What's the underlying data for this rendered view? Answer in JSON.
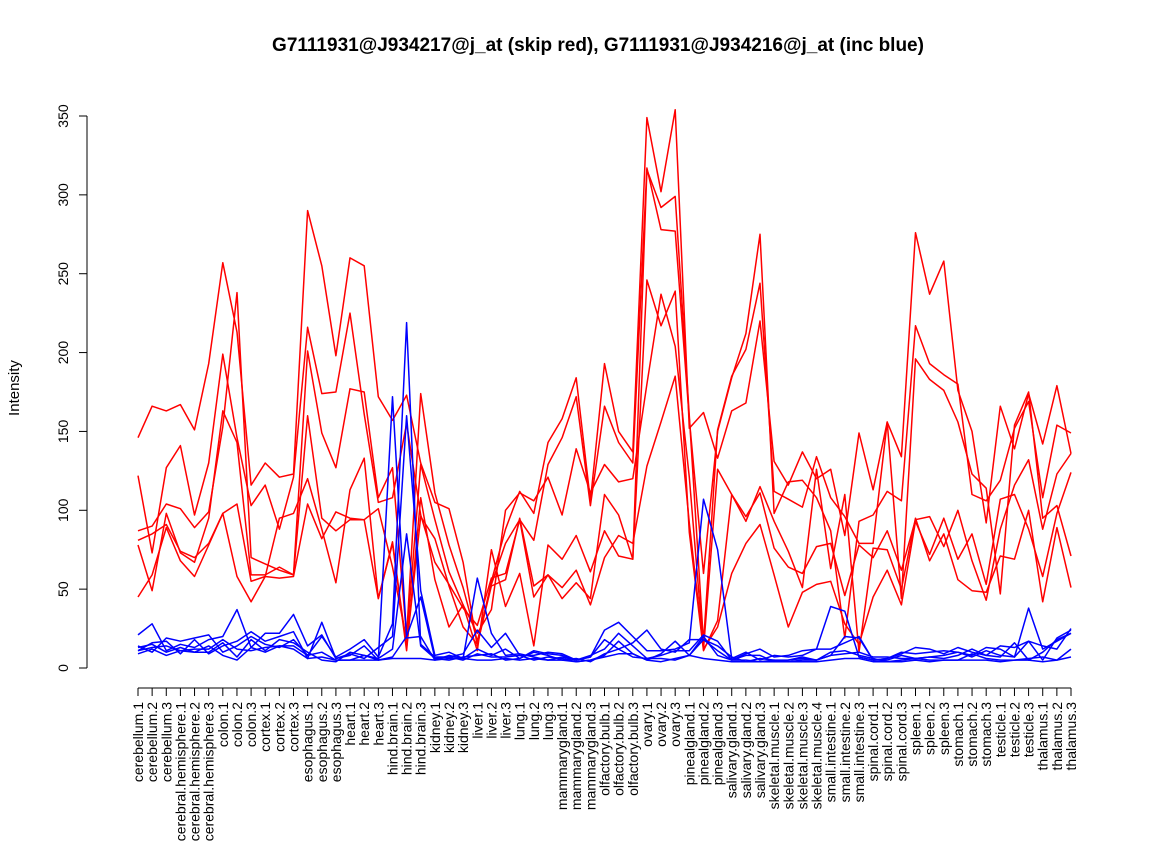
{
  "chart_data": {
    "type": "line",
    "title": "G7111931@J934217@j_at (skip red), G7111931@J934216@j_at (inc blue)",
    "xlabel": "",
    "ylabel": "Intensity",
    "ylim": [
      0,
      350
    ],
    "yticks": [
      0,
      50,
      100,
      150,
      200,
      250,
      300,
      350
    ],
    "grid": false,
    "legend": "none",
    "colors": {
      "red": "#ff0000",
      "blue": "#0000ff"
    },
    "categories": [
      "cerebellum.1",
      "cerebellum.2",
      "cerebellum.3",
      "cerebral.hemisphere.1",
      "cerebral.hemisphere.2",
      "cerebral.hemisphere.3",
      "colon.1",
      "colon.2",
      "colon.3",
      "cortex.1",
      "cortex.2",
      "cortex.3",
      "esophagus.1",
      "esophagus.2",
      "esophagus.3",
      "heart.1",
      "heart.2",
      "heart.3",
      "hind.brain.1",
      "hind.brain.2",
      "hind.brain.3",
      "kidney.1",
      "kidney.2",
      "kidney.3",
      "liver.1",
      "liver.2",
      "liver.3",
      "lung.1",
      "lung.2",
      "lung.3",
      "mammarygland.1",
      "mammarygland.2",
      "mammarygland.3",
      "olfactory.bulb.1",
      "olfactory.bulb.2",
      "olfactory.bulb.3",
      "ovary.1",
      "ovary.2",
      "ovary.3",
      "pinealgland.1",
      "pinealgland.2",
      "pinealgland.3",
      "salivary.gland.1",
      "salivary.gland.2",
      "salivary.gland.3",
      "skeletal.muscle.1",
      "skeletal.muscle.2",
      "skeletal.muscle.3",
      "skeletal.muscle.4",
      "small.intestine.1",
      "small.intestine.2",
      "small.intestine.3",
      "spinal.cord.1",
      "spinal.cord.2",
      "spinal.cord.3",
      "spleen.1",
      "spleen.2",
      "spleen.3",
      "stomach.1",
      "stomach.2",
      "stomach.3",
      "testicle.1",
      "testicle.2",
      "testicle.3",
      "thalamus.1",
      "thalamus.2",
      "thalamus.3"
    ],
    "series": [
      {
        "color": "red",
        "values": [
          146,
          166,
          163,
          167,
          151,
          193,
          257,
          213,
          116,
          130,
          121,
          123,
          290,
          255,
          198,
          260,
          255,
          172,
          157,
          173,
          130,
          105,
          101,
          67,
          14,
          55,
          88,
          112,
          98,
          143,
          158,
          184,
          106,
          193,
          150,
          137,
          349,
          302,
          354,
          152,
          162,
          133,
          163,
          168,
          220,
          131,
          116,
          137,
          120,
          126,
          84,
          149,
          113,
          156,
          134,
          276,
          237,
          258,
          176,
          150,
          92,
          166,
          139,
          174,
          142,
          179,
          136
        ]
      },
      {
        "color": "red",
        "values": [
          122,
          73,
          127,
          141,
          97,
          130,
          199,
          146,
          103,
          116,
          88,
          121,
          216,
          174,
          175,
          225,
          161,
          105,
          108,
          155,
          97,
          67,
          53,
          38,
          27,
          57,
          60,
          94,
          81,
          129,
          146,
          172,
          103,
          166,
          143,
          130,
          317,
          278,
          277,
          158,
          60,
          150,
          184,
          212,
          275,
          98,
          118,
          119,
          108,
          87,
          19,
          93,
          97,
          112,
          106,
          217,
          193,
          186,
          180,
          110,
          106,
          119,
          152,
          169,
          108,
          154,
          149
        ]
      },
      {
        "color": "red",
        "values": [
          78,
          49,
          98,
          73,
          67,
          95,
          163,
          143,
          59,
          59,
          64,
          59,
          201,
          149,
          127,
          177,
          175,
          108,
          127,
          20,
          174,
          111,
          78,
          51,
          17,
          53,
          79,
          94,
          45,
          59,
          44,
          54,
          44,
          110,
          97,
          69,
          316,
          292,
          299,
          160,
          16,
          151,
          185,
          202,
          244,
          112,
          107,
          102,
          134,
          108,
          96,
          79,
          79,
          156,
          44,
          196,
          183,
          176,
          156,
          123,
          114,
          47,
          154,
          175,
          95,
          103,
          71
        ]
      },
      {
        "color": "red",
        "values": [
          87,
          90,
          104,
          101,
          89,
          99,
          153,
          238,
          70,
          66,
          62,
          59,
          160,
          95,
          87,
          94,
          94,
          101,
          64,
          18,
          129,
          94,
          61,
          40,
          22,
          37,
          100,
          111,
          106,
          121,
          97,
          139,
          111,
          129,
          118,
          120,
          180,
          237,
          204,
          121,
          12,
          126,
          110,
          96,
          111,
          76,
          64,
          60,
          77,
          79,
          46,
          78,
          70,
          87,
          62,
          94,
          96,
          77,
          100,
          68,
          43,
          88,
          116,
          132,
          88,
          123,
          136
        ]
      },
      {
        "color": "red",
        "values": [
          45,
          59,
          89,
          68,
          58,
          78,
          98,
          58,
          42,
          58,
          95,
          98,
          120,
          88,
          54,
          113,
          133,
          44,
          79,
          11,
          108,
          56,
          26,
          40,
          11,
          75,
          39,
          60,
          14,
          78,
          69,
          84,
          61,
          87,
          71,
          69,
          246,
          217,
          239,
          86,
          11,
          30,
          110,
          93,
          115,
          93,
          74,
          51,
          126,
          63,
          110,
          10,
          76,
          75,
          50,
          95,
          68,
          85,
          56,
          49,
          48,
          71,
          69,
          100,
          42,
          89,
          51
        ]
      },
      {
        "color": "red",
        "values": [
          81,
          85,
          91,
          74,
          70,
          79,
          98,
          104,
          55,
          58,
          57,
          58,
          104,
          82,
          99,
          95,
          94,
          44,
          80,
          13,
          96,
          82,
          52,
          26,
          15,
          52,
          56,
          95,
          52,
          59,
          51,
          62,
          40,
          70,
          84,
          79,
          128,
          156,
          185,
          92,
          12,
          26,
          60,
          79,
          91,
          59,
          26,
          48,
          53,
          55,
          28,
          15,
          45,
          62,
          40,
          93,
          72,
          95,
          69,
          85,
          53,
          107,
          110,
          88,
          58,
          98,
          124
        ]
      },
      {
        "color": "blue",
        "values": [
          21,
          28,
          11,
          15,
          13,
          18,
          20,
          37,
          13,
          22,
          22,
          34,
          14,
          21,
          6,
          8,
          14,
          5,
          172,
          19,
          20,
          5,
          8,
          6,
          57,
          22,
          8,
          9,
          7,
          5,
          7,
          5,
          7,
          24,
          29,
          20,
          11,
          11,
          12,
          16,
          107,
          75,
          6,
          10,
          5,
          8,
          7,
          8,
          12,
          39,
          36,
          7,
          5,
          6,
          10,
          9,
          10,
          11,
          10,
          8,
          13,
          12,
          7,
          38,
          12,
          17,
          22
        ]
      },
      {
        "color": "blue",
        "values": [
          14,
          10,
          19,
          17,
          19,
          21,
          10,
          14,
          20,
          15,
          13,
          18,
          8,
          20,
          7,
          12,
          18,
          7,
          28,
          219,
          15,
          7,
          7,
          9,
          24,
          13,
          22,
          8,
          8,
          10,
          9,
          5,
          7,
          18,
          12,
          16,
          24,
          12,
          10,
          18,
          18,
          11,
          5,
          9,
          12,
          7,
          8,
          11,
          12,
          12,
          16,
          20,
          5,
          6,
          9,
          13,
          12,
          9,
          13,
          10,
          8,
          14,
          13,
          17,
          14,
          12,
          25
        ]
      },
      {
        "color": "blue",
        "values": [
          11,
          16,
          17,
          9,
          18,
          9,
          14,
          17,
          23,
          17,
          20,
          23,
          6,
          29,
          6,
          9,
          6,
          13,
          20,
          160,
          49,
          8,
          10,
          6,
          12,
          8,
          12,
          6,
          11,
          9,
          8,
          5,
          8,
          12,
          22,
          14,
          6,
          8,
          11,
          11,
          21,
          17,
          5,
          8,
          8,
          4,
          5,
          6,
          5,
          8,
          20,
          19,
          5,
          5,
          8,
          6,
          7,
          8,
          10,
          7,
          11,
          8,
          7,
          17,
          5,
          19,
          24
        ]
      },
      {
        "color": "blue",
        "values": [
          9,
          12,
          8,
          11,
          10,
          10,
          16,
          7,
          18,
          11,
          18,
          16,
          10,
          5,
          4,
          10,
          8,
          6,
          12,
          85,
          14,
          6,
          7,
          5,
          9,
          7,
          7,
          8,
          5,
          7,
          6,
          4,
          5,
          8,
          17,
          9,
          5,
          9,
          17,
          8,
          18,
          14,
          7,
          4,
          6,
          5,
          5,
          7,
          5,
          8,
          9,
          10,
          7,
          7,
          6,
          6,
          7,
          6,
          8,
          12,
          8,
          7,
          16,
          5,
          10,
          18,
          22
        ]
      },
      {
        "color": "blue",
        "values": [
          13,
          15,
          10,
          13,
          10,
          14,
          8,
          5,
          13,
          10,
          14,
          14,
          8,
          10,
          5,
          5,
          8,
          5,
          7,
          20,
          45,
          6,
          5,
          7,
          8,
          9,
          5,
          6,
          10,
          8,
          5,
          6,
          4,
          9,
          12,
          7,
          6,
          6,
          5,
          8,
          20,
          8,
          5,
          5,
          4,
          5,
          4,
          5,
          5,
          10,
          11,
          8,
          6,
          4,
          5,
          6,
          5,
          5,
          5,
          9,
          6,
          5,
          5,
          6,
          7,
          5,
          12
        ]
      },
      {
        "color": "blue",
        "values": [
          11,
          13,
          14,
          11,
          12,
          12,
          18,
          12,
          11,
          13,
          14,
          12,
          6,
          7,
          5,
          5,
          5,
          5,
          6,
          6,
          6,
          5,
          6,
          6,
          5,
          5,
          6,
          5,
          6,
          5,
          5,
          4,
          5,
          7,
          9,
          9,
          5,
          4,
          6,
          8,
          6,
          5,
          4,
          4,
          4,
          4,
          4,
          4,
          4,
          5,
          6,
          6,
          4,
          4,
          4,
          5,
          4,
          5,
          5,
          5,
          5,
          4,
          5,
          5,
          4,
          5,
          7
        ]
      }
    ]
  }
}
